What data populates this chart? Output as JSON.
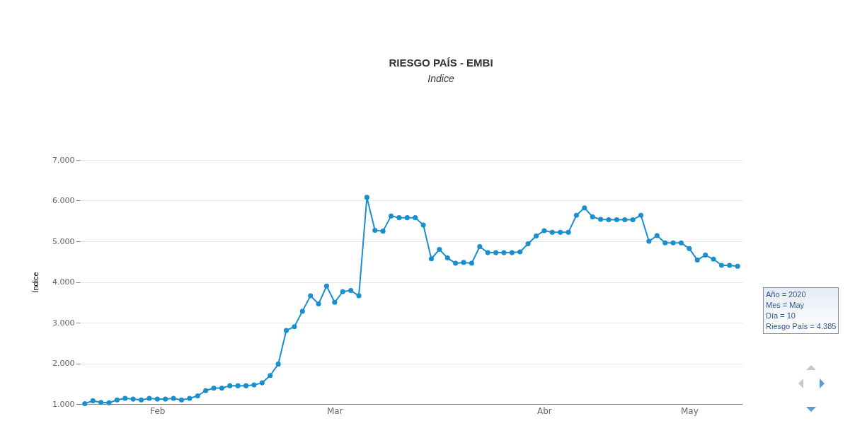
{
  "chart_data": {
    "type": "line",
    "title": "RIESGO PAÍS - EMBI",
    "subtitle": "Indice",
    "ylabel": "Índice",
    "categories": [
      null,
      null,
      null,
      null,
      null,
      null,
      null,
      null,
      null,
      "Feb",
      null,
      null,
      null,
      null,
      null,
      null,
      null,
      null,
      null,
      null,
      null,
      null,
      null,
      null,
      null,
      null,
      null,
      null,
      null,
      null,
      null,
      "Mar",
      null,
      null,
      null,
      null,
      null,
      null,
      null,
      null,
      null,
      null,
      null,
      null,
      null,
      null,
      null,
      null,
      null,
      null,
      null,
      null,
      null,
      null,
      null,
      null,
      null,
      "Abr",
      null,
      null,
      null,
      null,
      null,
      null,
      null,
      null,
      null,
      null,
      null,
      null,
      null,
      null,
      null,
      null,
      null,
      "May",
      null,
      null,
      null,
      null,
      null,
      null
    ],
    "series": [
      {
        "color": "#1a8fcf",
        "values": [
          1010,
          1080,
          1040,
          1030,
          1100,
          1140,
          1120,
          1100,
          1140,
          1120,
          1120,
          1140,
          1100,
          1140,
          1200,
          1330,
          1390,
          1390,
          1450,
          1450,
          1450,
          1470,
          1520,
          1700,
          1980,
          2810,
          2900,
          3280,
          3660,
          3460,
          3900,
          3500,
          3760,
          3790,
          3660,
          6080,
          5270,
          5250,
          5620,
          5580,
          5580,
          5580,
          5400,
          4570,
          4800,
          4590,
          4460,
          4480,
          4460,
          4870,
          4720,
          4720,
          4720,
          4720,
          4740,
          4940,
          5130,
          5260,
          5220,
          5220,
          5220,
          5640,
          5820,
          5600,
          5540,
          5530,
          5530,
          5530,
          5530,
          5640,
          5000,
          5140,
          4960,
          4960,
          4960,
          4820,
          4540,
          4660,
          4560,
          4410,
          4410,
          4385
        ]
      }
    ],
    "ylim": [
      1000,
      7000
    ],
    "yticks": [
      {
        "value": 1000,
        "label": "1.000"
      },
      {
        "value": 2000,
        "label": "2.000"
      },
      {
        "value": 3000,
        "label": "3.000"
      },
      {
        "value": 4000,
        "label": "4.000"
      },
      {
        "value": 5000,
        "label": "5.000"
      },
      {
        "value": 6000,
        "label": "6.000"
      },
      {
        "value": 7000,
        "label": "7.000"
      }
    ],
    "grid": "y",
    "marker": "circle",
    "line_style": "solid",
    "annotations": [
      "Año = 2020",
      "Mes = May",
      "Día = 10",
      "Riesgo País = 4.385"
    ]
  }
}
